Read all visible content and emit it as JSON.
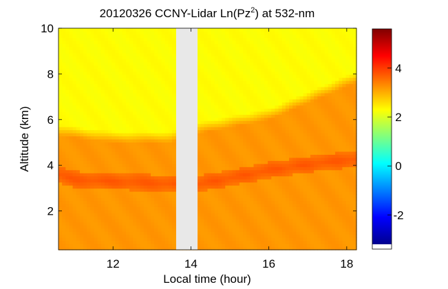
{
  "chart_data": {
    "type": "heatmap",
    "title_prefix": "20120326 CCNY-Lidar Ln(Pz",
    "title_sup": "2",
    "title_suffix": ") at 532-nm",
    "xlabel": "Local time (hour)",
    "ylabel": "Altitude (km)",
    "xlim": [
      10.6,
      18.25
    ],
    "ylim": [
      0.3,
      10
    ],
    "x_ticks": [
      12,
      14,
      16,
      18
    ],
    "y_ticks": [
      2,
      4,
      6,
      8,
      10
    ],
    "colorbar": {
      "colormap": "jet",
      "range": [
        -3.2,
        5.6
      ],
      "ticks": [
        -2,
        0,
        2,
        4
      ]
    },
    "data_gap": {
      "x_start": 13.62,
      "x_end": 14.17
    },
    "value_model": {
      "background_value": 2.3,
      "lower_layer": {
        "top_km": 5.2,
        "value": 3.2
      },
      "upper_boundary_km": {
        "x": [
          10.6,
          12,
          13.5,
          14.2,
          16,
          18.2
        ],
        "y": [
          5.3,
          5.0,
          5.0,
          5.4,
          6.0,
          7.6
        ]
      },
      "aerosol_layer": {
        "x": [
          10.6,
          11,
          12,
          13,
          13.6,
          14.2,
          15,
          16,
          17,
          18
        ],
        "y": [
          3.6,
          3.4,
          3.3,
          3.25,
          3.2,
          3.2,
          3.45,
          3.8,
          4.05,
          4.25
        ],
        "value": 3.5
      },
      "upper_band": {
        "x": [
          16,
          17.2,
          18
        ],
        "y": [
          5.2,
          5.3,
          5.45
        ],
        "value": 3.0
      }
    }
  }
}
